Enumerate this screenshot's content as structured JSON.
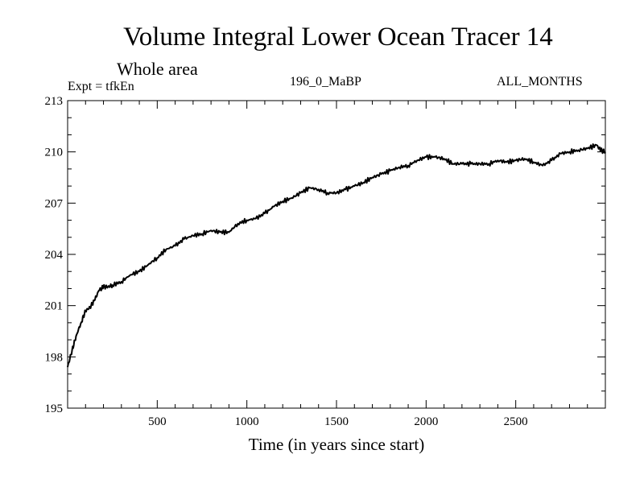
{
  "header": {
    "title": "Volume Integral Lower Ocean Tracer 14",
    "subtitle": "Whole area",
    "experiment": "Expt = tfkEn",
    "period": "196_0_MaBP",
    "months": "ALL_MONTHS"
  },
  "chart_data": {
    "type": "line",
    "title": "Volume Integral Lower Ocean Tracer 14",
    "subtitle": "Whole area",
    "xlabel": "Time (in years since start)",
    "ylabel": "",
    "xlim": [
      0,
      3000
    ],
    "ylim": [
      195,
      213
    ],
    "xticks": [
      500,
      1000,
      1500,
      2000,
      2500
    ],
    "yticks": [
      195,
      198,
      201,
      204,
      207,
      210,
      213
    ],
    "grid": false,
    "series": [
      {
        "color": "#000000",
        "x": [
          0,
          25,
          50,
          75,
          100,
          125,
          150,
          175,
          200,
          225,
          250,
          300,
          350,
          400,
          450,
          500,
          550,
          600,
          650,
          700,
          750,
          800,
          850,
          900,
          950,
          1000,
          1050,
          1100,
          1150,
          1200,
          1250,
          1300,
          1350,
          1400,
          1450,
          1500,
          1550,
          1600,
          1650,
          1700,
          1750,
          1800,
          1850,
          1900,
          1950,
          2000,
          2050,
          2100,
          2150,
          2200,
          2250,
          2300,
          2350,
          2400,
          2450,
          2500,
          2550,
          2600,
          2650,
          2700,
          2750,
          2800,
          2850,
          2900,
          2950,
          2975,
          3000
        ],
        "y": [
          197.4,
          198.4,
          199.3,
          200.0,
          200.7,
          200.9,
          201.3,
          201.9,
          202.1,
          202.1,
          202.2,
          202.4,
          202.8,
          203.0,
          203.4,
          203.8,
          204.3,
          204.5,
          204.9,
          205.1,
          205.2,
          205.4,
          205.3,
          205.3,
          205.8,
          206.0,
          206.1,
          206.4,
          206.8,
          207.1,
          207.3,
          207.6,
          207.9,
          207.8,
          207.6,
          207.6,
          207.8,
          208.0,
          208.2,
          208.5,
          208.7,
          208.9,
          209.1,
          209.2,
          209.5,
          209.7,
          209.7,
          209.6,
          209.3,
          209.3,
          209.3,
          209.3,
          209.3,
          209.5,
          209.4,
          209.5,
          209.6,
          209.4,
          209.2,
          209.5,
          209.9,
          210.0,
          210.1,
          210.2,
          210.4,
          210.1,
          210.0
        ]
      }
    ]
  }
}
